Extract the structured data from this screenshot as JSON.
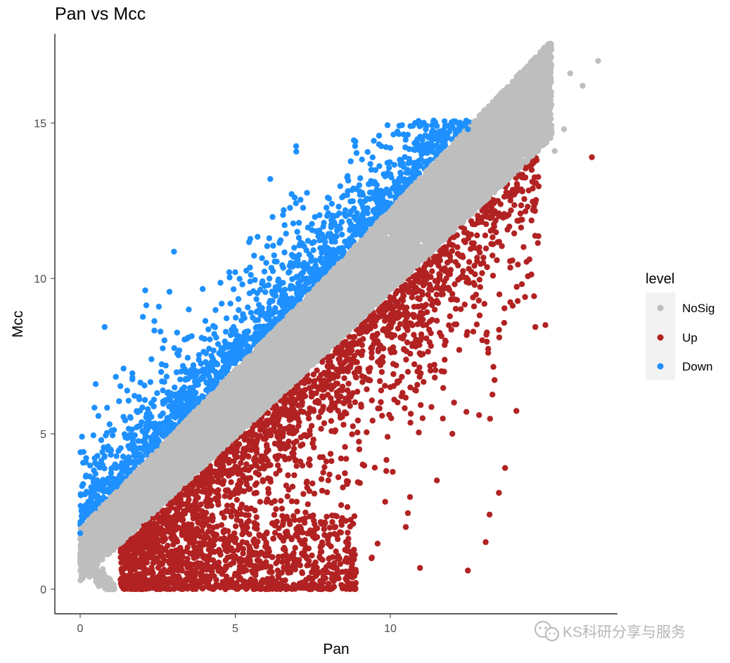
{
  "chart_data": {
    "type": "scatter",
    "title": "Pan vs Mcc",
    "xlabel": "Pan",
    "ylabel": "Mcc",
    "xlim": [
      -0.8,
      17.3
    ],
    "ylim": [
      -0.8,
      17.8
    ],
    "xticks": [
      0,
      5,
      10
    ],
    "yticks": [
      0,
      5,
      10,
      15
    ],
    "grid": false,
    "legend": {
      "title": "level",
      "position": "right",
      "entries": [
        {
          "label": "NoSig",
          "color": "#bebebe"
        },
        {
          "label": "Up",
          "color": "#b22222"
        },
        {
          "label": "Down",
          "color": "#1e90ff"
        }
      ]
    },
    "series": [
      {
        "name": "NoSig",
        "color": "#bebebe",
        "description": "dense diagonal band roughly y = x, from about (0, 1) up to (16.7, 17)",
        "points": [
          [
            0,
            1.0
          ],
          [
            0.1,
            0.8
          ],
          [
            0.3,
            0.4
          ],
          [
            0.6,
            0.1
          ],
          [
            0.9,
            0.0
          ],
          [
            1.0,
            1.9
          ],
          [
            2,
            2.9
          ],
          [
            3,
            3.9
          ],
          [
            4,
            4.9
          ],
          [
            5,
            5.9
          ],
          [
            6,
            6.9
          ],
          [
            7,
            7.9
          ],
          [
            8,
            8.9
          ],
          [
            9,
            9.9
          ],
          [
            10,
            10.9
          ],
          [
            11,
            11.8
          ],
          [
            12,
            12.8
          ],
          [
            13,
            13.8
          ],
          [
            14,
            14.8
          ],
          [
            15,
            15.5
          ],
          [
            15.8,
            16.6
          ],
          [
            16.2,
            16.2
          ],
          [
            16.7,
            17.0
          ],
          [
            15.3,
            14.1
          ],
          [
            15.6,
            14.8
          ]
        ]
      },
      {
        "name": "Up",
        "color": "#b22222",
        "description": "points below the diagonal band (Pan > Mcc)",
        "points": [
          [
            1.5,
            0.1
          ],
          [
            2.5,
            0.3
          ],
          [
            4,
            1.0
          ],
          [
            5,
            0.5
          ],
          [
            6,
            1.5
          ],
          [
            7,
            2.5
          ],
          [
            8,
            3.5
          ],
          [
            9,
            4.5
          ],
          [
            10,
            6.5
          ],
          [
            11,
            8.2
          ],
          [
            12,
            9.5
          ],
          [
            13,
            10.5
          ],
          [
            13.5,
            12.0
          ],
          [
            14,
            12.7
          ],
          [
            14.6,
            12.2
          ],
          [
            16.5,
            13.9
          ],
          [
            15,
            8.5
          ],
          [
            13.7,
            3.9
          ],
          [
            13.5,
            3.1
          ],
          [
            12.5,
            0.6
          ],
          [
            13.2,
            2.4
          ],
          [
            12,
            5.0
          ],
          [
            10.5,
            2.0
          ],
          [
            11.5,
            3.5
          ]
        ]
      },
      {
        "name": "Down",
        "color": "#1e90ff",
        "description": "points above the diagonal band (Mcc > Pan)",
        "points": [
          [
            0,
            1.8
          ],
          [
            0.5,
            3.5
          ],
          [
            0.5,
            6.6
          ],
          [
            1.4,
            7.1
          ],
          [
            2.3,
            7.4
          ],
          [
            3.5,
            9.0
          ],
          [
            5,
            10.2
          ],
          [
            6,
            10.5
          ],
          [
            7,
            11.5
          ],
          [
            8,
            12.1
          ],
          [
            9,
            13.0
          ],
          [
            10,
            14.2
          ],
          [
            10.8,
            15.0
          ],
          [
            11.5,
            14.9
          ],
          [
            12.5,
            14.8
          ]
        ]
      }
    ]
  },
  "watermark": {
    "text": "KS科研分享与服务",
    "icon": "wechat-icon"
  }
}
